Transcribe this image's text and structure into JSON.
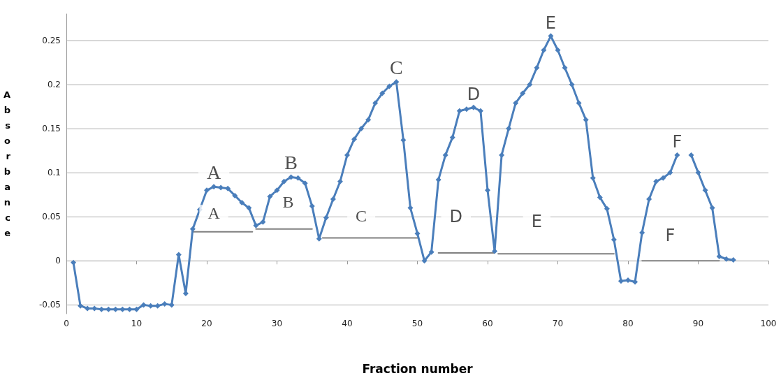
{
  "chart_data": {
    "type": "line",
    "xlabel": "Fraction number",
    "ylabel": "Absorbance",
    "x": [
      1,
      2,
      3,
      4,
      5,
      6,
      7,
      8,
      9,
      10,
      11,
      12,
      13,
      14,
      15,
      16,
      17,
      18,
      19,
      20,
      21,
      22,
      23,
      24,
      25,
      26,
      27,
      28,
      29,
      30,
      31,
      32,
      33,
      34,
      35,
      36,
      37,
      38,
      39,
      40,
      41,
      42,
      43,
      44,
      45,
      46,
      47,
      48,
      49,
      50,
      51,
      52,
      53,
      54,
      55,
      56,
      57,
      58,
      59,
      60,
      61,
      62,
      63,
      64,
      65,
      66,
      67,
      68,
      69,
      70,
      71,
      72,
      73,
      74,
      75,
      76,
      77,
      78,
      79,
      80,
      81,
      82,
      83,
      84,
      85,
      86,
      87,
      88,
      89,
      90,
      91,
      92,
      93,
      94,
      95
    ],
    "series": [
      {
        "color": "#4a7ebb",
        "marker": "diamond",
        "values": [
          -0.002,
          -0.051,
          -0.054,
          -0.054,
          -0.055,
          -0.055,
          -0.055,
          -0.055,
          -0.055,
          -0.055,
          -0.05,
          -0.051,
          -0.051,
          -0.049,
          -0.05,
          0.007,
          -0.037,
          0.036,
          0.058,
          0.08,
          0.084,
          0.083,
          0.082,
          0.074,
          0.066,
          0.06,
          0.04,
          0.044,
          0.073,
          0.08,
          0.09,
          0.095,
          0.094,
          0.088,
          0.062,
          0.025,
          0.049,
          0.07,
          0.09,
          0.12,
          0.138,
          0.15,
          0.16,
          0.179,
          0.19,
          0.198,
          0.203,
          0.137,
          0.06,
          0.031,
          0,
          0.01,
          0.092,
          0.12,
          0.14,
          0.17,
          0.172,
          0.174,
          0.17,
          0.08,
          0.011,
          0.12,
          0.15,
          0.179,
          0.19,
          0.2,
          0.219,
          0.239,
          0.255,
          0.239,
          0.219,
          0.2,
          0.179,
          0.16,
          0.094,
          0.072,
          0.059,
          0.024,
          -0.023,
          -0.022,
          -0.024,
          0.032,
          0.07,
          0.09,
          0.094,
          0.1,
          0.12,
          null,
          0.12,
          0.1,
          0.08,
          0.06,
          0.005,
          0.002,
          0.001
        ]
      },
      {
        "color": "#808080",
        "marker": "none",
        "x": [
          18,
          26.5
        ],
        "values": [
          0.033,
          0.033
        ]
      },
      {
        "color": "#808080",
        "marker": "none",
        "x": [
          27,
          35
        ],
        "values": [
          0.036,
          0.036
        ]
      },
      {
        "color": "#808080",
        "marker": "none",
        "x": [
          36.5,
          50
        ],
        "values": [
          0.026,
          0.026
        ]
      },
      {
        "color": "#808080",
        "marker": "none",
        "x": [
          53,
          61
        ],
        "values": [
          0.009,
          0.009
        ]
      },
      {
        "color": "#808080",
        "marker": "none",
        "x": [
          61.5,
          78
        ],
        "values": [
          0.008,
          0.008
        ]
      },
      {
        "color": "#808080",
        "marker": "none",
        "x": [
          82,
          93
        ],
        "values": [
          0,
          0
        ]
      }
    ],
    "xlim": [
      0,
      100
    ],
    "xticks": [
      0,
      10,
      20,
      30,
      40,
      50,
      60,
      70,
      80,
      90,
      100
    ],
    "ylim": [
      -0.06,
      0.28
    ],
    "yticks": [
      -0.05,
      0,
      0.05,
      0.1,
      0.15,
      0.2,
      0.25
    ],
    "grid": "y",
    "annotations": [
      {
        "text": "A",
        "x": 21,
        "y": 0.084
      },
      {
        "text": "B",
        "x": 32,
        "y": 0.095
      },
      {
        "text": "C",
        "x": 47,
        "y": 0.203
      },
      {
        "text": "D",
        "x": 58,
        "y": 0.174
      },
      {
        "text": "E",
        "x": 69,
        "y": 0.255
      },
      {
        "text": "F",
        "x": 87,
        "y": 0.12
      },
      {
        "text": "A",
        "x": 21,
        "y": 0.054
      },
      {
        "text": "B",
        "x": 31.6,
        "y": 0.067
      },
      {
        "text": "C",
        "x": 42,
        "y": 0.051
      },
      {
        "text": "D",
        "x": 55.5,
        "y": 0.05
      },
      {
        "text": "E",
        "x": 67,
        "y": 0.045
      },
      {
        "text": "F",
        "x": 86,
        "y": 0.029
      }
    ]
  }
}
